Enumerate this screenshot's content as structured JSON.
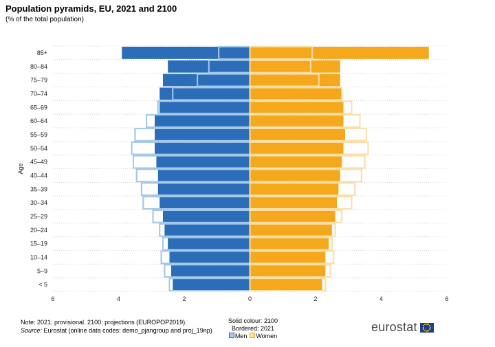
{
  "title": "Population pyramids, EU, 2021 and 2100",
  "subtitle": "(% of the total population)",
  "note": {
    "line1": "Note: 2021: provisional. 2100: projections (EUROPOP2019).",
    "source_label": "Source:",
    "source_text": " Eurostat (online data codes: demo_pjangroup and proj_19np)"
  },
  "legend": {
    "solid": "Solid colour: 2100",
    "bordered": "Bordered: 2021",
    "men": "Men",
    "women": "Women"
  },
  "logo": {
    "text": "eurostat"
  },
  "colors": {
    "men_fill": "#2b6db8",
    "men_border": "#a6c8e8",
    "women_fill": "#f5a81c",
    "women_border": "#fbdfa9",
    "grid": "#c8c8c8"
  },
  "chart_data": {
    "type": "bar",
    "orientation": "horizontal",
    "ylabel": "Age",
    "xlim": [
      -6,
      6
    ],
    "xticks": [
      -6,
      -4,
      -2,
      0,
      2,
      4,
      6
    ],
    "xtick_labels": [
      "6",
      "4",
      "2",
      "0",
      "2",
      "4",
      "6"
    ],
    "categories": [
      "< 5",
      "5–9",
      "10–14",
      "15–19",
      "20–24",
      "25–29",
      "30–34",
      "35–39",
      "40–44",
      "45–49",
      "50–54",
      "55–59",
      "60–64",
      "65–69",
      "70–74",
      "75–79",
      "80–84",
      "85+"
    ],
    "series": [
      {
        "name": "Men",
        "year": "2100",
        "style": "solid",
        "values": [
          2.35,
          2.4,
          2.45,
          2.5,
          2.6,
          2.65,
          2.75,
          2.8,
          2.8,
          2.85,
          2.9,
          2.9,
          2.9,
          2.75,
          2.75,
          2.65,
          2.5,
          3.9
        ]
      },
      {
        "name": "Men",
        "year": "2021",
        "style": "bordered",
        "values": [
          2.45,
          2.6,
          2.7,
          2.65,
          2.75,
          2.95,
          3.25,
          3.3,
          3.45,
          3.55,
          3.6,
          3.5,
          3.15,
          2.8,
          2.35,
          1.6,
          1.25,
          0.95
        ]
      },
      {
        "name": "Women",
        "year": "2100",
        "style": "solid",
        "values": [
          2.2,
          2.3,
          2.3,
          2.4,
          2.5,
          2.6,
          2.65,
          2.7,
          2.75,
          2.8,
          2.85,
          2.9,
          2.85,
          2.85,
          2.8,
          2.75,
          2.75,
          5.45
        ]
      },
      {
        "name": "Women",
        "year": "2021",
        "style": "bordered",
        "values": [
          2.3,
          2.45,
          2.55,
          2.5,
          2.6,
          2.8,
          3.1,
          3.2,
          3.4,
          3.5,
          3.6,
          3.55,
          3.35,
          3.1,
          2.8,
          2.1,
          1.85,
          1.9
        ]
      }
    ]
  }
}
